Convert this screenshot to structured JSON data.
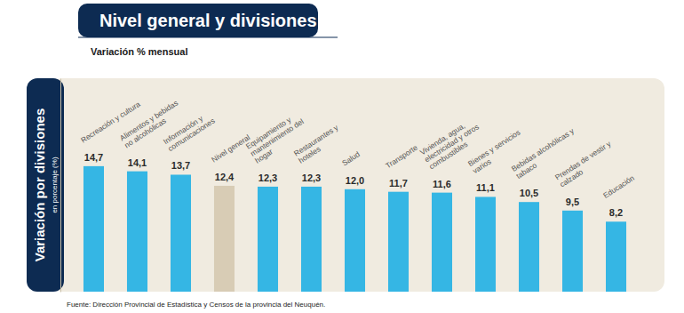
{
  "chart_data": {
    "type": "bar",
    "title": "Nivel general y divisiones",
    "subtitle": "Variación % mensual",
    "ylabel": "Variación por divisiones",
    "ylabel_sub": "en porcentaje (%)",
    "source": "Fuente: Dirección Provincial de Estadística y Censos de la provincia del Neuquén.",
    "categories": [
      "Recreación y cultura",
      "Alimentos y bebidas no alcohólicas",
      "Información y comunicaciones",
      "Nivel general",
      "Equipamiento y mantenimiento del hogar",
      "Restaurantes y hoteles",
      "Salud",
      "Transporte",
      "Vivienda, agua, electricidad y otros combustibles",
      "Bienes y servicios varios",
      "Bebidas alcohólicas y tabaco",
      "Prendas de vestir y calzado",
      "Educación"
    ],
    "values": [
      14.7,
      14.1,
      13.7,
      12.4,
      12.3,
      12.3,
      12.0,
      11.7,
      11.6,
      11.1,
      10.5,
      9.5,
      8.2
    ],
    "value_labels": [
      "14,7",
      "14,1",
      "13,7",
      "12,4",
      "12,3",
      "12,3",
      "12,0",
      "11,7",
      "11,6",
      "11,1",
      "10,5",
      "9,5",
      "8,2"
    ],
    "colors": [
      "#35b6e4",
      "#35b6e4",
      "#35b6e4",
      "#d8ccb5",
      "#35b6e4",
      "#35b6e4",
      "#35b6e4",
      "#35b6e4",
      "#35b6e4",
      "#35b6e4",
      "#35b6e4",
      "#35b6e4",
      "#35b6e4"
    ],
    "ylim": [
      0,
      25
    ],
    "yticks": [],
    "grid": false,
    "data_labels": true,
    "tick_labels": false
  }
}
